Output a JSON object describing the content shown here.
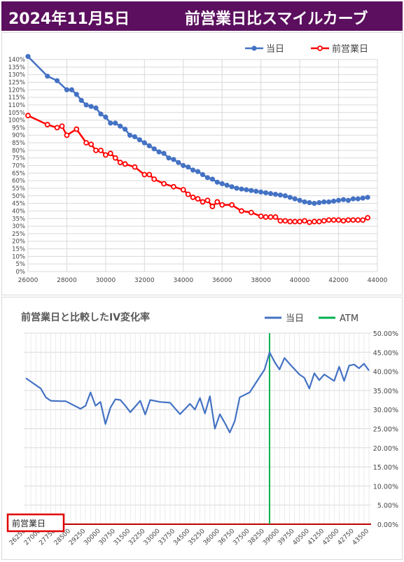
{
  "header": {
    "date": "2024年11月5日",
    "title": "前営業日比スマイルカーブ"
  },
  "colors": {
    "header_bg": "#5b0f5e",
    "today": "#4472c4",
    "prev": "#ff0000",
    "atm": "#00b050",
    "iv_line": "#4472c4",
    "zero_line": "#c00000",
    "grid": "#d9d9d9"
  },
  "chart_data": [
    {
      "type": "line",
      "title": "",
      "legend_position": "top-right",
      "grid": true,
      "xlabel": "",
      "ylabel": "",
      "xlim": [
        26000,
        44000
      ],
      "ylim": [
        0,
        140
      ],
      "y_unit": "%",
      "x_ticks": [
        "26000",
        "28000",
        "30000",
        "32000",
        "34000",
        "36000",
        "38000",
        "40000",
        "42000",
        "44000"
      ],
      "y_ticks": [
        "0%",
        "5%",
        "10%",
        "15%",
        "20%",
        "25%",
        "30%",
        "35%",
        "40%",
        "45%",
        "50%",
        "55%",
        "60%",
        "65%",
        "70%",
        "75%",
        "80%",
        "85%",
        "90%",
        "95%",
        "100%",
        "105%",
        "110%",
        "115%",
        "120%",
        "125%",
        "130%",
        "135%",
        "140%"
      ],
      "series": [
        {
          "name": "当日",
          "x": [
            26000,
            27000,
            27500,
            28000,
            28250,
            28500,
            28750,
            29000,
            29250,
            29500,
            29750,
            30000,
            30250,
            30500,
            30750,
            31000,
            31250,
            31500,
            31750,
            32000,
            32250,
            32500,
            32750,
            33000,
            33250,
            33500,
            33750,
            34000,
            34250,
            34500,
            34750,
            35000,
            35250,
            35500,
            35750,
            36000,
            36250,
            36500,
            36750,
            37000,
            37250,
            37500,
            37750,
            38000,
            38250,
            38500,
            38750,
            39000,
            39250,
            39500,
            39750,
            40000,
            40250,
            40500,
            40750,
            41000,
            41250,
            41500,
            41750,
            42000,
            42250,
            42500,
            42750,
            43000,
            43250,
            43500
          ],
          "values": [
            142,
            129,
            126,
            120,
            120,
            117,
            113,
            110,
            109,
            108,
            104,
            102,
            98,
            98,
            96,
            94,
            90,
            89,
            87,
            85,
            83,
            81,
            79,
            78,
            75,
            74,
            72,
            70,
            69,
            67,
            66,
            64,
            62,
            61,
            59,
            58,
            57,
            56,
            55,
            54.5,
            54,
            53.5,
            53,
            52.5,
            52,
            51.5,
            51,
            50.5,
            50,
            49,
            48,
            47,
            46,
            45.5,
            45,
            45.5,
            46,
            46,
            46.5,
            47,
            47.5,
            47,
            48,
            48,
            48.5,
            49
          ]
        },
        {
          "name": "前営業日",
          "x": [
            26000,
            27000,
            27500,
            27750,
            28000,
            28500,
            29000,
            29250,
            29500,
            29750,
            30000,
            30250,
            30500,
            30750,
            31000,
            31500,
            32000,
            32250,
            32500,
            33000,
            33500,
            34000,
            34250,
            34500,
            34750,
            35000,
            35250,
            35500,
            35750,
            36000,
            36500,
            37000,
            37500,
            38000,
            38250,
            38500,
            38750,
            39000,
            39250,
            39500,
            39750,
            40000,
            40250,
            40500,
            40750,
            41000,
            41250,
            41500,
            41750,
            42000,
            42250,
            42500,
            42750,
            43000,
            43250,
            43500
          ],
          "values": [
            103,
            97,
            95,
            96,
            90,
            94,
            85,
            84,
            80,
            80,
            77,
            78,
            75,
            72,
            71,
            69,
            64,
            64,
            61,
            58,
            56,
            54,
            51,
            49,
            48,
            46,
            47,
            43,
            46,
            44,
            44,
            40,
            39,
            36.5,
            36,
            36,
            36,
            33.5,
            33.5,
            33,
            33,
            33,
            33.5,
            32.5,
            33,
            33,
            33.5,
            34,
            34,
            34,
            33.5,
            34,
            34,
            34,
            34,
            35.5
          ]
        }
      ]
    },
    {
      "type": "line",
      "title": "前営業日と比較したIV変化率",
      "legend_position": "top-right",
      "grid": true,
      "xlabel": "",
      "ylabel": "",
      "ylim": [
        0,
        50
      ],
      "y_unit": "%",
      "y_axis_side": "right",
      "y_ticks": [
        "0.00%",
        "5.00%",
        "10.00%",
        "15.00%",
        "20.00%",
        "25.00%",
        "30.00%",
        "35.00%",
        "40.00%",
        "45.00%",
        "50.00%"
      ],
      "x_tick_labels": [
        "26250",
        "27000",
        "27750",
        "28500",
        "29250",
        "30000",
        "30750",
        "31500",
        "32250",
        "33000",
        "33750",
        "34500",
        "35250",
        "36000",
        "36750",
        "37500",
        "38250",
        "39000",
        "39750",
        "40500",
        "41250",
        "42000",
        "42750",
        "43500"
      ],
      "reference_line": {
        "name": "ATM",
        "x": 38500
      },
      "baseline_label": "前営業日",
      "series": [
        {
          "name": "当日",
          "x": [
            26250,
            27000,
            27250,
            27500,
            28000,
            28250,
            29000,
            29250,
            29500,
            29750,
            30000,
            30250,
            30500,
            30750,
            31000,
            31250,
            31500,
            32000,
            32250,
            32500,
            33000,
            33500,
            34000,
            34500,
            34750,
            35000,
            35250,
            35500,
            35750,
            36000,
            36250,
            36500,
            36750,
            37000,
            37500,
            38250,
            38500,
            38750,
            39000,
            39250,
            39500,
            40000,
            40250,
            40500,
            40750,
            41000,
            41250,
            41750,
            42000,
            42250,
            42500,
            42750,
            43000,
            43250,
            43500
          ],
          "values": [
            38.2,
            35.5,
            33.2,
            32.3,
            32.2,
            32.2,
            30.2,
            31,
            34.5,
            31,
            32,
            26.2,
            30.5,
            32.7,
            32.5,
            31,
            29.3,
            32.3,
            28.7,
            32.5,
            32,
            31.8,
            28.8,
            31.5,
            30,
            33,
            29,
            33.5,
            25,
            28.8,
            26.5,
            24,
            27,
            33.2,
            34.5,
            40.5,
            45,
            42.5,
            40.5,
            43.5,
            42,
            39.2,
            38.3,
            35.5,
            39.5,
            37.7,
            39.2,
            37.5,
            41.2,
            37.5,
            41.5,
            41.8,
            40.8,
            42,
            40.2
          ]
        },
        {
          "name": "ATM",
          "x": [
            38500,
            38500
          ],
          "values": [
            0,
            50
          ]
        }
      ]
    }
  ]
}
